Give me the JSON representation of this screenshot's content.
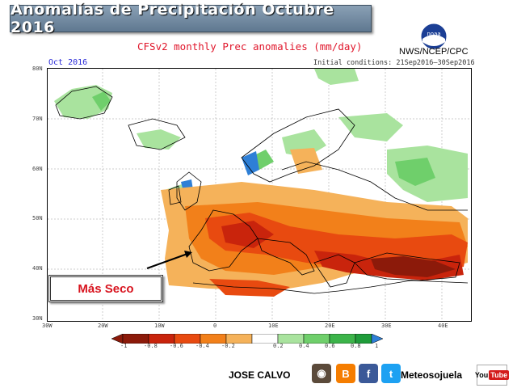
{
  "header": {
    "title": "Anomalías de Precipitación Octubre 2016",
    "subtitle": "CFSv2 monthly Prec anomalies (mm/day)",
    "agency": "NWS/NCEP/CPC",
    "logo_text": "noaa",
    "month_label": "Oct 2016",
    "initial_conditions": "Initial conditions: 21Sep2016—30Sep2016"
  },
  "map": {
    "lat_labels": [
      "80N",
      "70N",
      "60N",
      "50N",
      "40N",
      "30N"
    ],
    "lon_labels": [
      "30W",
      "20W",
      "10W",
      "0",
      "10E",
      "20E",
      "30E",
      "40E"
    ],
    "annotation": "Más Seco"
  },
  "colorbar": {
    "labels": [
      "-1",
      "-0.8",
      "-0.6",
      "-0.4",
      "-0.2",
      "0.2",
      "0.4",
      "0.6",
      "0.8",
      "1"
    ],
    "colors": [
      "#8c1a0a",
      "#c9240c",
      "#e84a10",
      "#f2801a",
      "#f5b25a",
      "#ffffff",
      "#a9e39e",
      "#6fcf6b",
      "#3cb44a",
      "#1f9c3a",
      "#2e7fd6"
    ]
  },
  "footer": {
    "author": "JOSE CALVO",
    "handle": "Meteosojuela",
    "youtube_you": "You",
    "youtube_tube": "Tube",
    "icons": [
      "instagram-icon",
      "blogger-icon",
      "facebook-icon",
      "twitter-icon"
    ]
  }
}
